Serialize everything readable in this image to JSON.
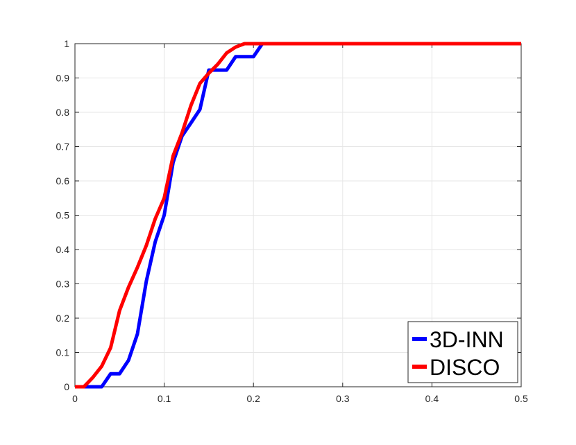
{
  "chart_data": {
    "type": "line",
    "title": "",
    "xlabel": "",
    "ylabel": "",
    "xlim": [
      0,
      0.5
    ],
    "ylim": [
      0,
      1
    ],
    "xticks": [
      0,
      0.1,
      0.2,
      0.3,
      0.4,
      0.5
    ],
    "xtick_labels": [
      "0",
      "0.1",
      "0.2",
      "0.3",
      "0.4",
      "0.5"
    ],
    "yticks": [
      0,
      0.1,
      0.2,
      0.3,
      0.4,
      0.5,
      0.6,
      0.7,
      0.8,
      0.9,
      1
    ],
    "ytick_labels": [
      "0",
      "0.1",
      "0.2",
      "0.3",
      "0.4",
      "0.5",
      "0.6",
      "0.7",
      "0.8",
      "0.9",
      "1"
    ],
    "grid": true,
    "legend_position": "bottom-right",
    "series": [
      {
        "name": "3D-INN",
        "color": "#0000ff",
        "x": [
          0,
          0.01,
          0.02,
          0.03,
          0.04,
          0.05,
          0.06,
          0.07,
          0.08,
          0.09,
          0.1,
          0.11,
          0.12,
          0.13,
          0.14,
          0.15,
          0.16,
          0.17,
          0.18,
          0.19,
          0.2,
          0.21,
          0.22,
          0.5
        ],
        "y": [
          0,
          0,
          0,
          0,
          0.038,
          0.038,
          0.077,
          0.154,
          0.308,
          0.423,
          0.5,
          0.654,
          0.731,
          0.769,
          0.808,
          0.923,
          0.923,
          0.923,
          0.962,
          0.962,
          0.962,
          1,
          1,
          1
        ]
      },
      {
        "name": "DISCO",
        "color": "#ff0000",
        "x": [
          0,
          0.01,
          0.02,
          0.03,
          0.04,
          0.05,
          0.06,
          0.07,
          0.08,
          0.09,
          0.1,
          0.11,
          0.12,
          0.13,
          0.14,
          0.15,
          0.16,
          0.17,
          0.18,
          0.19,
          0.2,
          0.5
        ],
        "y": [
          0,
          0,
          0.027,
          0.06,
          0.114,
          0.222,
          0.29,
          0.348,
          0.412,
          0.49,
          0.55,
          0.673,
          0.74,
          0.82,
          0.884,
          0.914,
          0.94,
          0.973,
          0.99,
          1,
          1,
          1
        ]
      }
    ]
  }
}
